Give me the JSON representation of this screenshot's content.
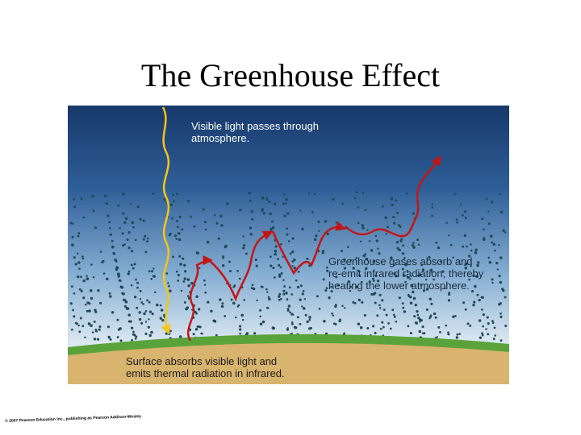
{
  "title": "The Greenhouse Effect",
  "figure": {
    "label_visible_light": "Visible light passes through\natmosphere.",
    "label_greenhouse": "Greenhouse gases absorb and\nre-emit infrared radiation, thereby\nheating the lower atmosphere.",
    "label_surface": "Surface absorbs visible light and\nemits thermal radiation in infrared.",
    "colors": {
      "sky_top": "#1d3f73",
      "sky_mid": "#6f9fc9",
      "sky_bottom": "#e6eef4",
      "molecule": "#1e4a57",
      "visible_ray": "#f5c518",
      "infrared_ray": "#c41616",
      "ground_green": "#5aa33a",
      "ground_sand": "#d9b46e"
    },
    "icons": [
      "visible-light-ray-icon",
      "infrared-ray-icon",
      "gas-molecule-icon"
    ]
  },
  "copyright": "© 2007 Pearson Education Inc., publishing as Pearson Addison-Wesley"
}
